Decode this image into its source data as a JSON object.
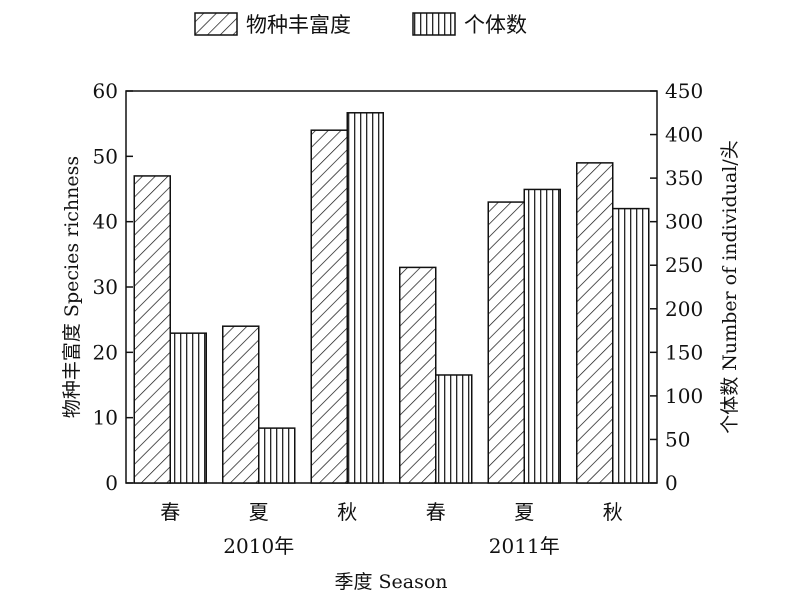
{
  "chart_data": {
    "type": "bar",
    "title": "",
    "categories": [
      "春",
      "夏",
      "秋",
      "春",
      "夏",
      "秋"
    ],
    "groups": [
      {
        "label": "2010年",
        "categories": [
          0,
          1,
          2
        ]
      },
      {
        "label": "2011年",
        "categories": [
          3,
          4,
          5
        ]
      }
    ],
    "xlabel": "季度 Season",
    "series": [
      {
        "name": "物种丰富度",
        "axis": "left",
        "pattern": "diagonal-hatch",
        "values": [
          47,
          24,
          54,
          33,
          43,
          49
        ]
      },
      {
        "name": "个体数",
        "axis": "right",
        "pattern": "vertical-hatch",
        "values": [
          172,
          63,
          425,
          124,
          337,
          315
        ]
      }
    ],
    "y_left": {
      "label": "物种丰富度 Species richness",
      "lim": [
        0,
        60
      ],
      "ticks": [
        0,
        10,
        20,
        30,
        40,
        50,
        60
      ]
    },
    "y_right": {
      "label": "个体数 Number of individual/头",
      "lim": [
        0,
        450
      ],
      "ticks": [
        0,
        50,
        100,
        150,
        200,
        250,
        300,
        350,
        400,
        450
      ]
    },
    "legend_position": "top-center",
    "grid": false,
    "colors": {
      "stroke": "#111111",
      "fill": "#ffffff"
    }
  }
}
